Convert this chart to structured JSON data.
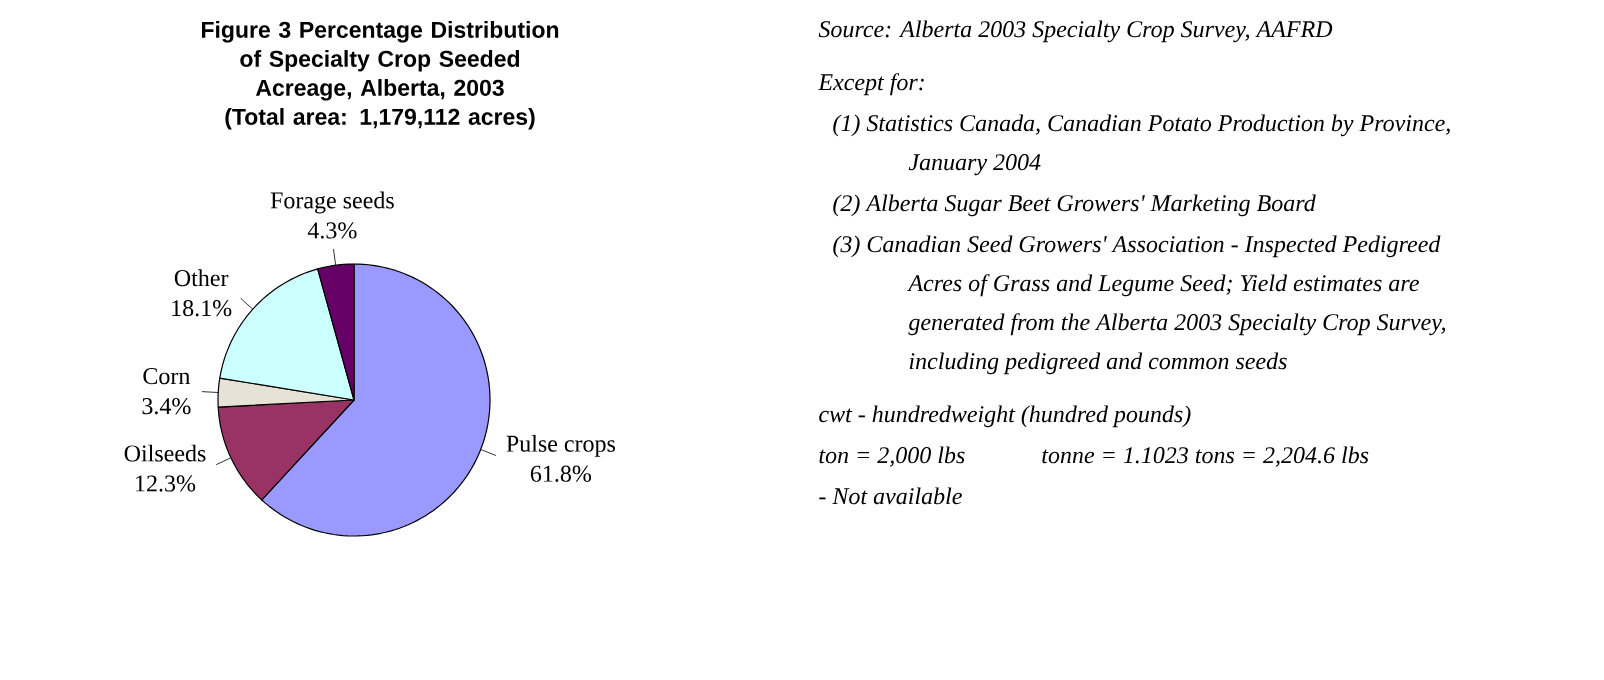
{
  "chart_data": {
    "type": "pie",
    "title": "Figure 3   Percentage Distribution of Specialty Crop Seeded Acreage, Alberta, 2003",
    "subtitle": "(Total area:  1,179,112 acres)",
    "categories": [
      "Pulse crops",
      "Oilseeds",
      "Corn",
      "Other",
      "Forage seeds"
    ],
    "values": [
      61.8,
      12.3,
      3.4,
      18.1,
      4.3
    ],
    "value_labels": [
      "61.8%",
      "12.3%",
      "3.4%",
      "18.1%",
      "4.3%"
    ],
    "colors": [
      "#9999ff",
      "#993366",
      "#e6e2d6",
      "#ccffff",
      "#660066"
    ],
    "annotations": [
      "Source: Alberta 2003 Specialty Crop Survey, AAFRD",
      "Except for:",
      "(1)  Statistics Canada, Canadian Potato Production by Province, January 2004",
      "(2)  Alberta Sugar Beet Growers' Marketing Board",
      "(3)  Canadian Seed Growers' Association - Inspected Pedigreed Acres of Grass and Legume Seed;  Yield estimates are generated from the Alberta 2003 Specialty Crop Survey, including pedigreed and common seeds",
      "cwt - hundredweight (hundred pounds)",
      "ton = 2,000 lbs",
      "tonne = 1.1023 tons = 2,204.6 lbs",
      "- Not available"
    ]
  }
}
